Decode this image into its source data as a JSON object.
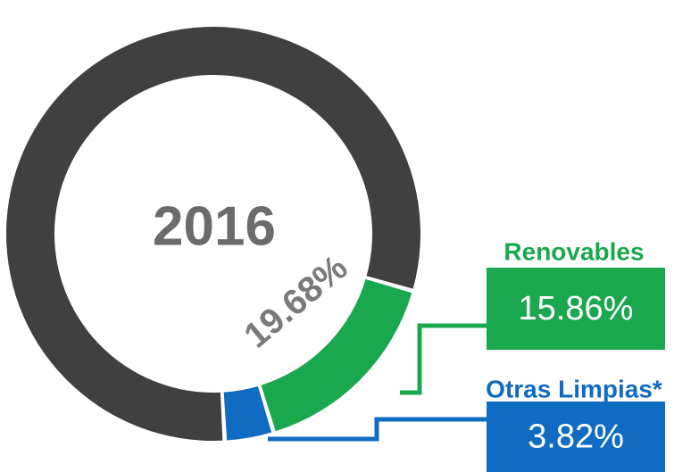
{
  "chart_data": {
    "type": "donut",
    "center_label": "2016",
    "total": {
      "value": 19.68,
      "label": "19.68%"
    },
    "categories": [
      "Renovables",
      "Otras Limpias*",
      null
    ],
    "values": [
      15.86,
      3.82,
      80.32
    ],
    "value_labels": [
      "15.86%",
      "3.82%",
      null
    ],
    "colors": [
      "#1aa84f",
      "#0f6cc2",
      "#404040"
    ]
  }
}
